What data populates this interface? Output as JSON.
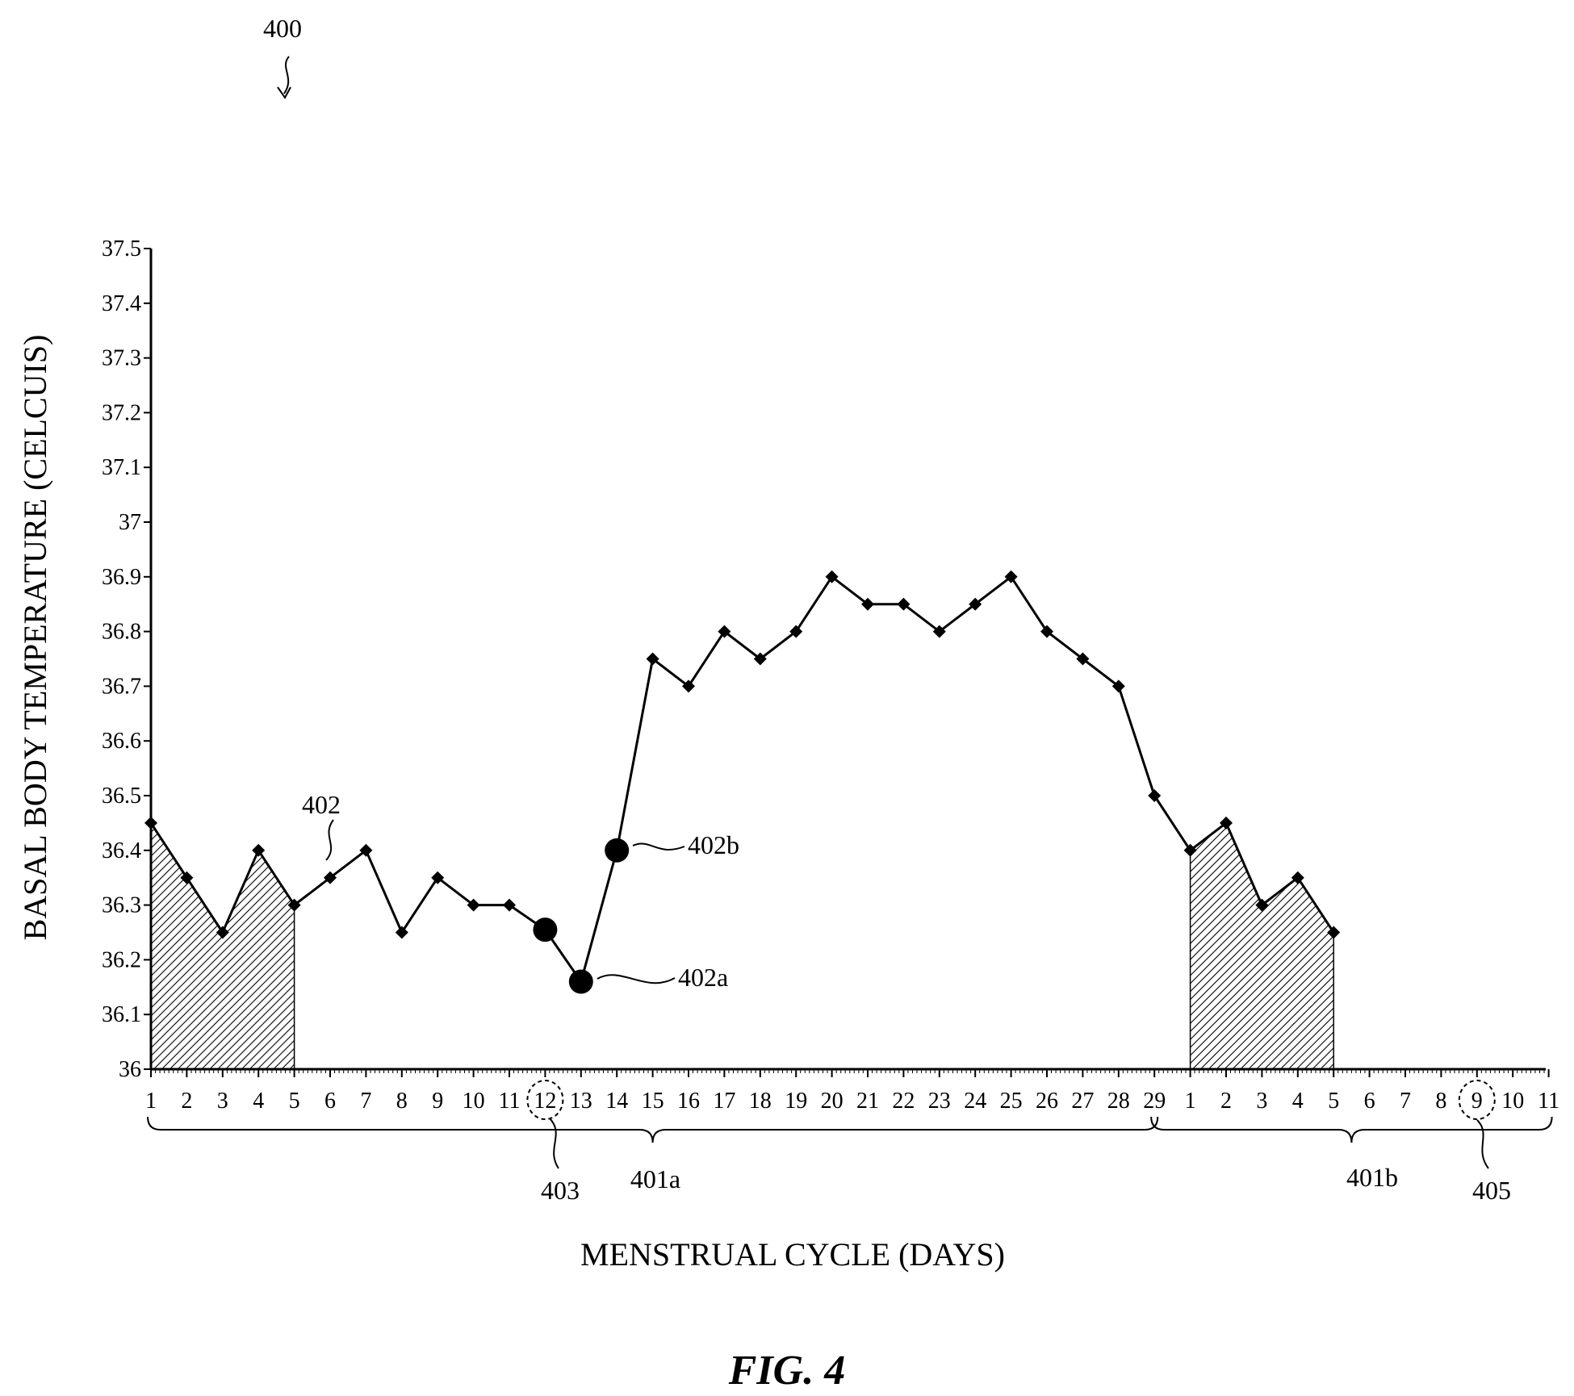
{
  "figure": {
    "ref_number": "400",
    "caption": "FIG. 4"
  },
  "chart_data": {
    "type": "line",
    "xlabel": "MENSTRUAL CYCLE (DAYS)",
    "ylabel": "BASAL BODY TEMPERATURE (CELCUIS)",
    "ylim": [
      36,
      37.5
    ],
    "yticks": [
      "37.5",
      "37.4",
      "37.3",
      "37.2",
      "37.1",
      "37",
      "36.9",
      "36.8",
      "36.7",
      "36.6",
      "36.5",
      "36.4",
      "36.3",
      "36.2",
      "36.1",
      "36"
    ],
    "x_tick_labels": [
      "1",
      "2",
      "3",
      "4",
      "5",
      "6",
      "7",
      "8",
      "9",
      "10",
      "11",
      "12",
      "13",
      "14",
      "15",
      "16",
      "17",
      "18",
      "19",
      "20",
      "21",
      "22",
      "23",
      "24",
      "25",
      "26",
      "27",
      "28",
      "29",
      "1",
      "2",
      "3",
      "4",
      "5",
      "6",
      "7",
      "8",
      "9",
      "10",
      "11"
    ],
    "series": [
      {
        "values": [
          36.45,
          36.35,
          36.25,
          36.4,
          36.3,
          36.35,
          36.4,
          36.25,
          36.35,
          36.3,
          36.3,
          36.255,
          36.16,
          36.4,
          36.75,
          36.7,
          36.8,
          36.75,
          36.8,
          36.9,
          36.85,
          36.85,
          36.8,
          36.85,
          36.9,
          36.8,
          36.75,
          36.7,
          36.5,
          36.4,
          36.45,
          36.3,
          36.35,
          36.25
        ]
      }
    ],
    "large_markers": [
      12,
      13,
      14
    ],
    "shaded_ranges": [
      [
        1,
        5
      ],
      [
        30,
        34
      ]
    ],
    "circled_ticks": [
      12,
      38
    ],
    "braces": [
      [
        1,
        29
      ],
      [
        29,
        40
      ]
    ]
  },
  "references": {
    "series_line": "402",
    "point_a": "402a",
    "point_b": "402b",
    "cycle_a": "401a",
    "cycle_b": "401b",
    "circled_day_a": "403",
    "circled_day_b": "405"
  }
}
